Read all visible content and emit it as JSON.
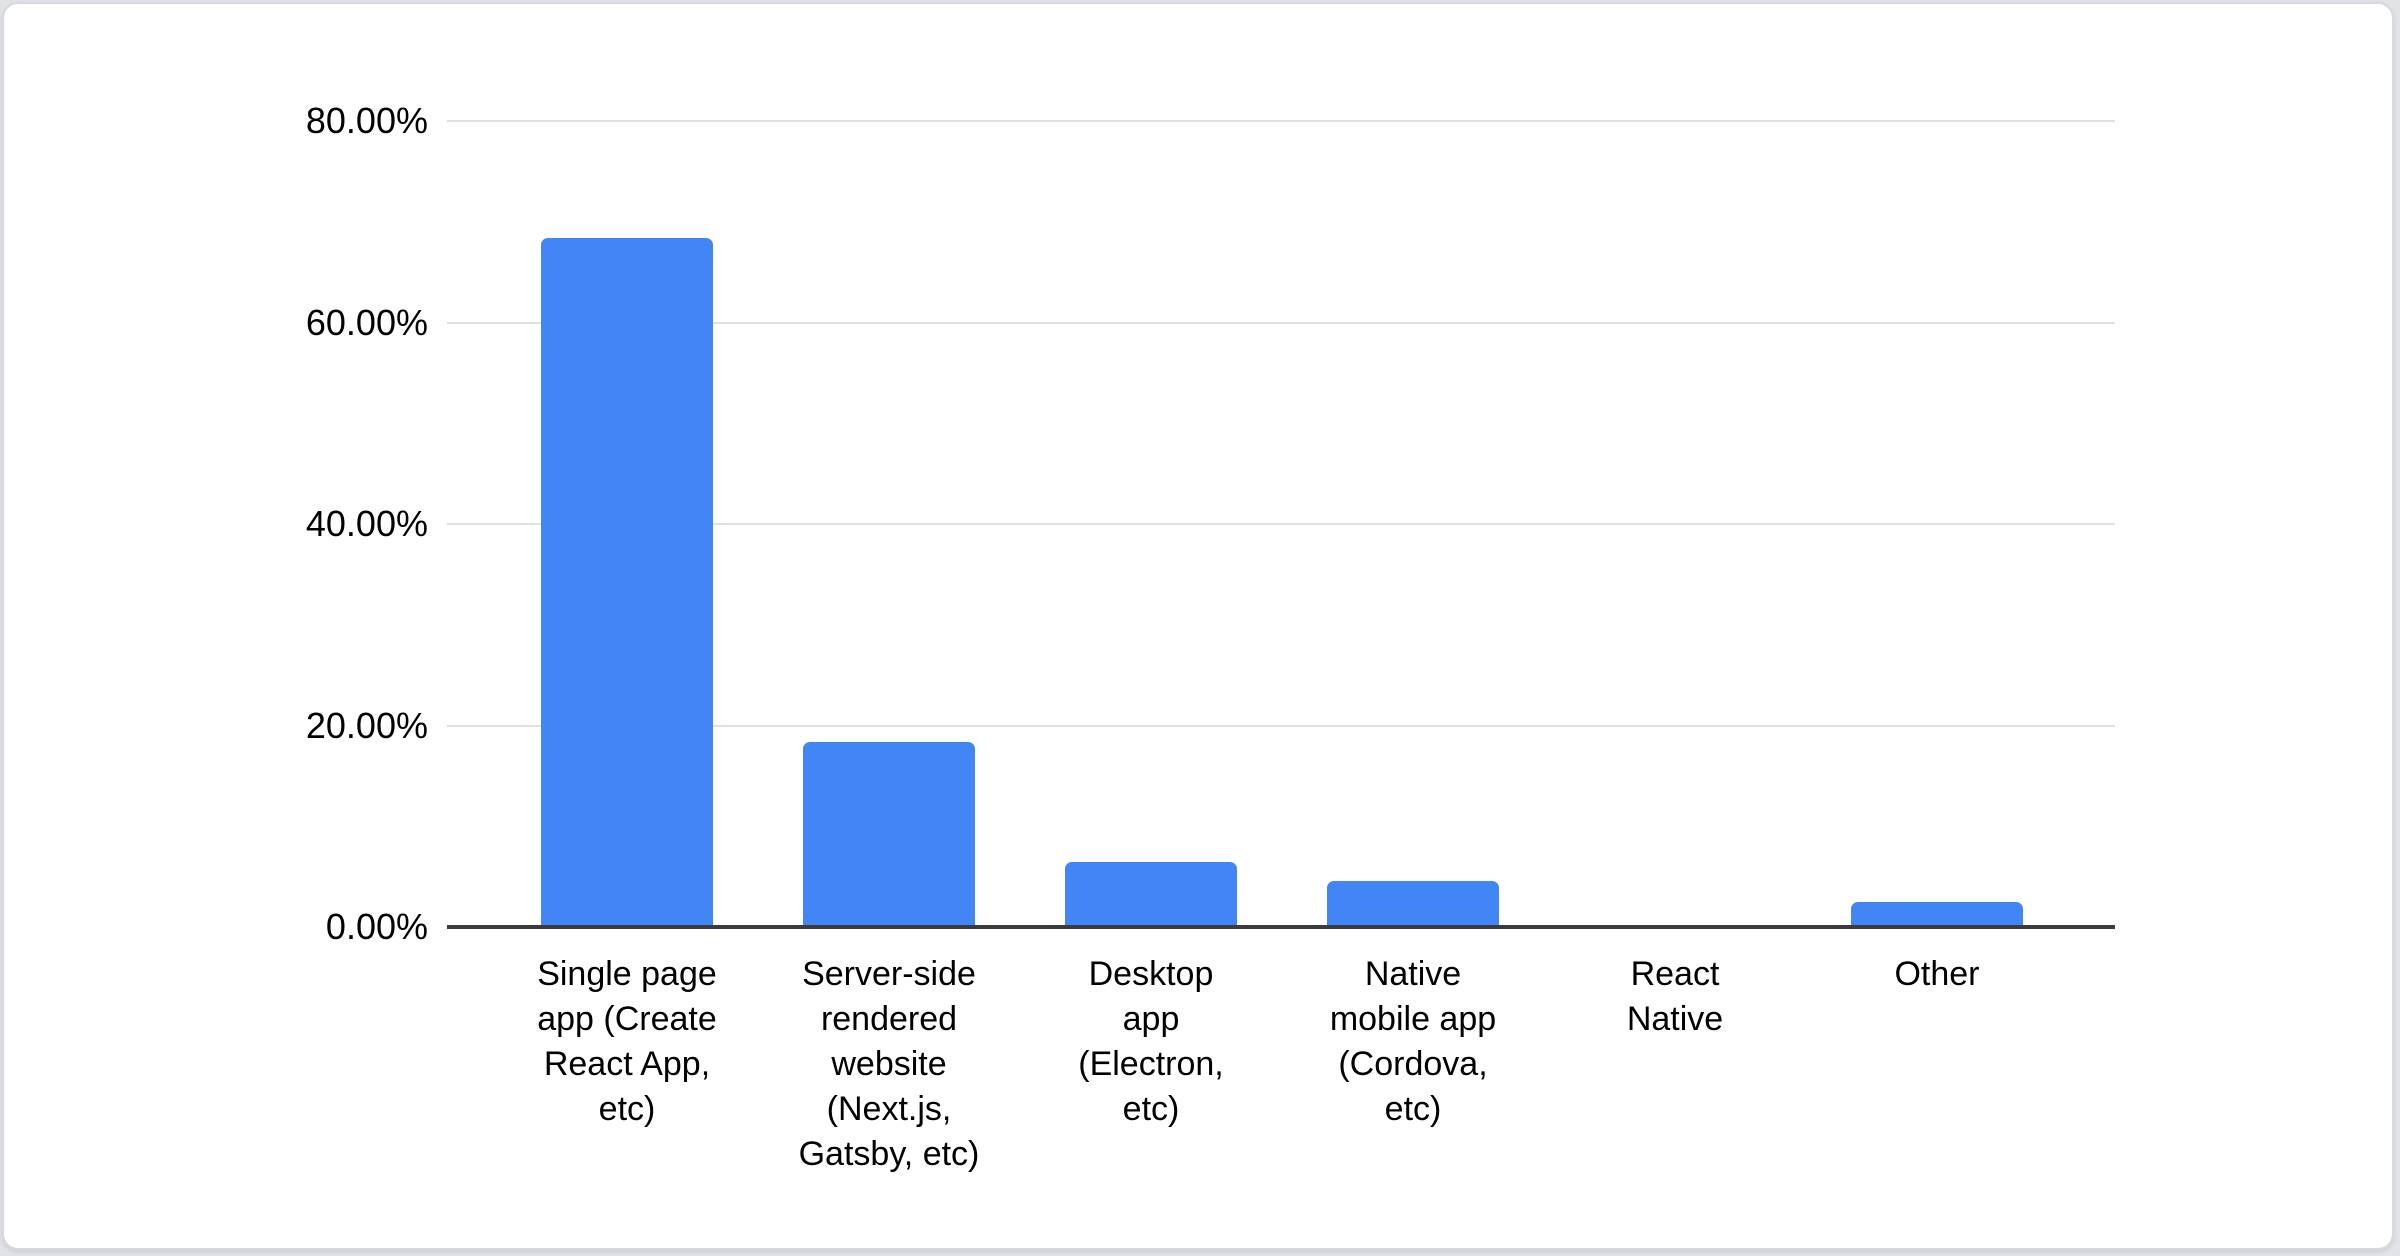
{
  "page": {
    "background_color": "#e1e3e7",
    "card_background": "#ffffff",
    "card_border_color": "#d6d9dd"
  },
  "chart_data": {
    "type": "bar",
    "title": "",
    "xlabel": "",
    "ylabel": "",
    "categories": [
      "Single page app (Create React App, etc)",
      "Server-side rendered website (Next.js, Gatsby, etc)",
      "Desktop app (Electron, etc)",
      "Native mobile app (Cordova, etc)",
      "React Native",
      "Other"
    ],
    "category_wrapped_lines": [
      "Single page\napp (Create\nReact App,\netc)",
      "Server-side\nrendered\nwebsite\n(Next.js,\nGatsby, etc)",
      "Desktop\napp\n(Electron,\netc)",
      "Native\nmobile app\n(Cordova,\netc)",
      "React\nNative",
      "Other"
    ],
    "values": [
      68.4,
      18.4,
      6.5,
      4.6,
      0,
      2.5
    ],
    "value_unit": "%",
    "y_ticks": [
      {
        "value": 0,
        "label": "0.00%"
      },
      {
        "value": 20,
        "label": "20.00%"
      },
      {
        "value": 40,
        "label": "40.00%"
      },
      {
        "value": 60,
        "label": "60.00%"
      },
      {
        "value": 80,
        "label": "80.00%"
      }
    ],
    "ylim": [
      0,
      80
    ],
    "grid": true,
    "legend": "none",
    "bar_color": "#4285f4",
    "gridline_color": "#e0e0e0",
    "axis_line_color": "#3b3b3b",
    "text_color": "#000000"
  }
}
